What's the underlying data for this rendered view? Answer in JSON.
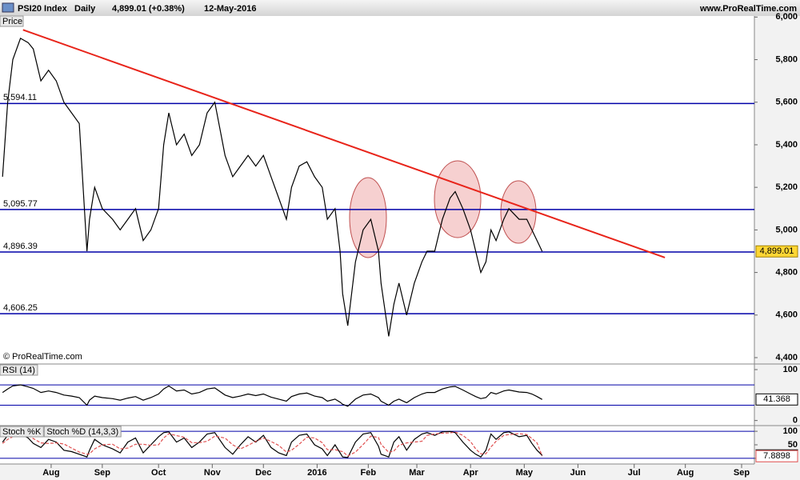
{
  "header": {
    "period": "Daily",
    "quote": "4,899.01 (+0.38%)",
    "date": "12-May-2016",
    "site": "www.ProRealTime.com"
  },
  "chart_data": [
    {
      "type": "line",
      "title": "Price",
      "copyright": "© ProRealTime.com",
      "xlim": [
        0,
        295
      ],
      "ylim": [
        4370,
        6005
      ],
      "xticks": [
        {
          "value": 20,
          "label": "Aug"
        },
        {
          "value": 40,
          "label": "Sep"
        },
        {
          "value": 62,
          "label": "Oct"
        },
        {
          "value": 83,
          "label": "Nov"
        },
        {
          "value": 103,
          "label": "Dec"
        },
        {
          "value": 124,
          "label": "2016"
        },
        {
          "value": 144,
          "label": "Feb"
        },
        {
          "value": 163,
          "label": "Mar"
        },
        {
          "value": 184,
          "label": "Apr"
        },
        {
          "value": 205,
          "label": "May"
        },
        {
          "value": 226,
          "label": "Jun"
        },
        {
          "value": 248,
          "label": "Jul"
        },
        {
          "value": 268,
          "label": "Aug"
        },
        {
          "value": 290,
          "label": "Sep"
        }
      ],
      "yticks": [
        {
          "value": 4400,
          "label": "4,400"
        },
        {
          "value": 4600,
          "label": "4,600"
        },
        {
          "value": 4800,
          "label": "4,800"
        },
        {
          "value": 5000,
          "label": "5,000"
        },
        {
          "value": 5200,
          "label": "5,200"
        },
        {
          "value": 5400,
          "label": "5,400"
        },
        {
          "value": 5600,
          "label": "5,600"
        },
        {
          "value": 5800,
          "label": "5,800"
        },
        {
          "value": 6000,
          "label": "6,000"
        }
      ],
      "x": [
        1,
        3,
        5,
        8,
        11,
        13,
        16,
        19,
        22,
        25,
        28,
        31,
        34,
        35,
        37,
        40,
        44,
        47,
        50,
        53,
        56,
        59,
        62,
        64,
        66,
        69,
        72,
        75,
        78,
        81,
        84,
        88,
        91,
        94,
        97,
        100,
        103,
        106,
        109,
        112,
        114,
        117,
        120,
        123,
        126,
        128,
        131,
        133,
        134,
        136,
        139,
        142,
        145,
        148,
        149,
        152,
        154,
        156,
        159,
        162,
        165,
        167,
        170,
        173,
        176,
        178,
        181,
        184,
        186,
        188,
        190,
        192,
        194,
        197,
        199,
        203,
        206,
        208,
        210,
        212
      ],
      "series": [
        {
          "name": "PSI20 Index",
          "color": "#000000",
          "values": [
            5250,
            5600,
            5800,
            5900,
            5880,
            5850,
            5700,
            5750,
            5700,
            5600,
            5550,
            5500,
            4900,
            5050,
            5200,
            5100,
            5050,
            5000,
            5050,
            5100,
            4950,
            5000,
            5100,
            5400,
            5550,
            5400,
            5450,
            5350,
            5400,
            5550,
            5600,
            5350,
            5250,
            5300,
            5350,
            5300,
            5350,
            5250,
            5150,
            5050,
            5200,
            5300,
            5320,
            5250,
            5200,
            5050,
            5100,
            4900,
            4700,
            4550,
            4850,
            5000,
            5050,
            4900,
            4750,
            4500,
            4650,
            4750,
            4600,
            4750,
            4850,
            4900,
            4900,
            5050,
            5150,
            5180,
            5100,
            5000,
            4900,
            4800,
            4850,
            5000,
            4950,
            5050,
            5100,
            5050,
            5050,
            5000,
            4950,
            4899.01
          ]
        }
      ],
      "last_value_label": "4,899.01",
      "levels": [
        {
          "value": 5594.11,
          "label": "5,594.11"
        },
        {
          "value": 5095.77,
          "label": "5,095.77"
        },
        {
          "value": 4896.39,
          "label": "4,896.39"
        },
        {
          "value": 4606.25,
          "label": "4,606.25"
        }
      ],
      "level_color": "#0000a8",
      "trendline": {
        "x": [
          9,
          260
        ],
        "values": [
          5940,
          4870
        ],
        "color": "#e8241a"
      }
    },
    {
      "type": "line",
      "ylim": [
        -10,
        111
      ],
      "yticks": [
        0,
        100
      ],
      "levels": [
        30,
        70
      ],
      "level_color": "#0000a8",
      "series": [
        {
          "name": "RSI (14)",
          "color": "#000000",
          "values": [
            55,
            62,
            68,
            70,
            66,
            63,
            55,
            58,
            55,
            50,
            48,
            45,
            30,
            40,
            48,
            45,
            43,
            40,
            44,
            47,
            40,
            45,
            52,
            62,
            68,
            58,
            60,
            52,
            55,
            62,
            64,
            50,
            45,
            48,
            52,
            49,
            52,
            46,
            42,
            38,
            47,
            52,
            54,
            48,
            45,
            38,
            42,
            36,
            32,
            28,
            42,
            50,
            52,
            45,
            38,
            30,
            38,
            42,
            35,
            45,
            52,
            55,
            55,
            62,
            66,
            67,
            60,
            52,
            47,
            43,
            45,
            55,
            52,
            58,
            60,
            56,
            55,
            52,
            47,
            41.368
          ]
        }
      ]
    },
    {
      "type": "line",
      "ylim": [
        -21,
        121
      ],
      "yticks": [
        0,
        50,
        100
      ],
      "levels": [
        0,
        100
      ],
      "level_color": "#0000a8",
      "series": [
        {
          "name": "Stoch %K",
          "color": "#000000",
          "values": [
            60,
            85,
            95,
            90,
            75,
            55,
            40,
            70,
            60,
            30,
            25,
            15,
            5,
            30,
            70,
            50,
            35,
            20,
            60,
            75,
            20,
            50,
            80,
            95,
            98,
            60,
            75,
            40,
            60,
            90,
            95,
            40,
            15,
            50,
            80,
            60,
            85,
            40,
            20,
            10,
            60,
            85,
            90,
            50,
            35,
            10,
            50,
            20,
            5,
            3,
            60,
            90,
            95,
            45,
            15,
            5,
            60,
            80,
            30,
            70,
            90,
            95,
            85,
            98,
            99,
            95,
            60,
            30,
            15,
            5,
            30,
            90,
            70,
            95,
            98,
            80,
            85,
            55,
            30,
            10.916
          ]
        },
        {
          "name": "Stoch %D (14,3,3)",
          "color": "#e05050",
          "dashed": true,
          "values": [
            55,
            70,
            80,
            90,
            87,
            73,
            57,
            55,
            57,
            53,
            38,
            23,
            15,
            17,
            35,
            50,
            52,
            35,
            38,
            52,
            52,
            48,
            50,
            75,
            91,
            84,
            78,
            58,
            58,
            63,
            82,
            75,
            50,
            35,
            48,
            63,
            75,
            62,
            48,
            23,
            30,
            52,
            78,
            75,
            58,
            32,
            32,
            27,
            25,
            9,
            23,
            51,
            82,
            77,
            52,
            22,
            27,
            48,
            57,
            60,
            63,
            85,
            90,
            93,
            94,
            97,
            85,
            62,
            35,
            17,
            17,
            42,
            63,
            85,
            88,
            91,
            88,
            73,
            57,
            7.8898
          ]
        }
      ]
    }
  ]
}
